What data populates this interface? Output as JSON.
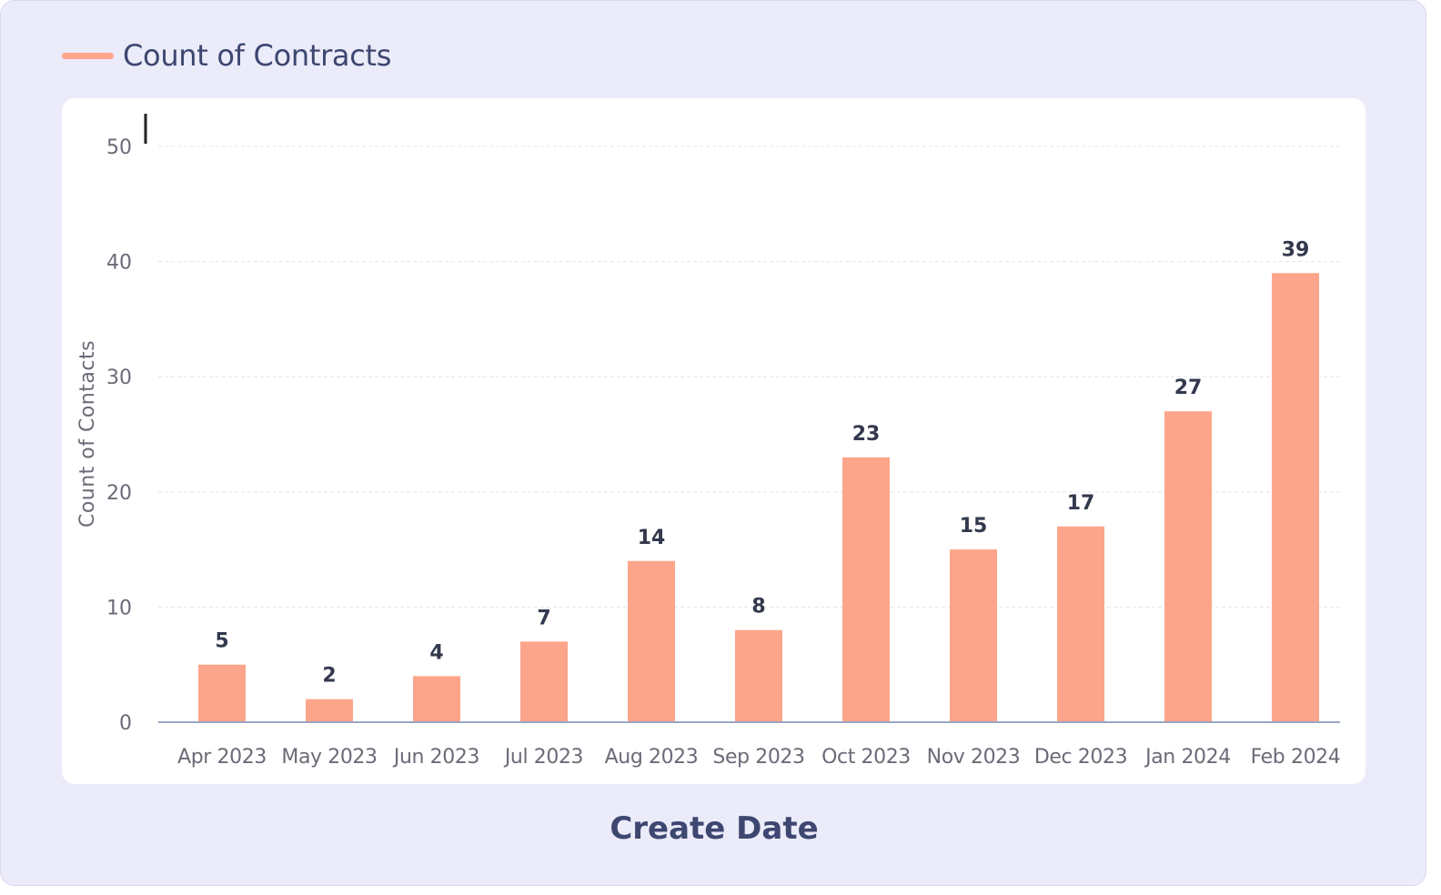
{
  "legend": {
    "label": "Count of Contracts"
  },
  "colors": {
    "bar": "#fda58b",
    "background": "#ebebfa",
    "card": "#ffffff",
    "grid": "#e4e4ea",
    "axis": "#9aa6c4",
    "tick_text": "#6b6b78",
    "label_text": "#33394d",
    "title_text": "#3d4770"
  },
  "chart_data": {
    "type": "bar",
    "categories": [
      "Apr 2023",
      "May 2023",
      "Jun 2023",
      "Jul 2023",
      "Aug 2023",
      "Sep 2023",
      "Oct 2023",
      "Nov 2023",
      "Dec 2023",
      "Jan 2024",
      "Feb 2024"
    ],
    "series": [
      {
        "name": "Count of Contracts",
        "values": [
          5,
          2,
          4,
          7,
          14,
          8,
          23,
          15,
          17,
          27,
          39
        ]
      }
    ],
    "xlabel": "Create Date",
    "ylabel": "Count of Contacts",
    "ylim": [
      0,
      50
    ],
    "yticks": [
      0,
      10,
      20,
      30,
      40,
      50
    ],
    "grid": true,
    "data_labels": true,
    "legend_position": "top-left"
  }
}
